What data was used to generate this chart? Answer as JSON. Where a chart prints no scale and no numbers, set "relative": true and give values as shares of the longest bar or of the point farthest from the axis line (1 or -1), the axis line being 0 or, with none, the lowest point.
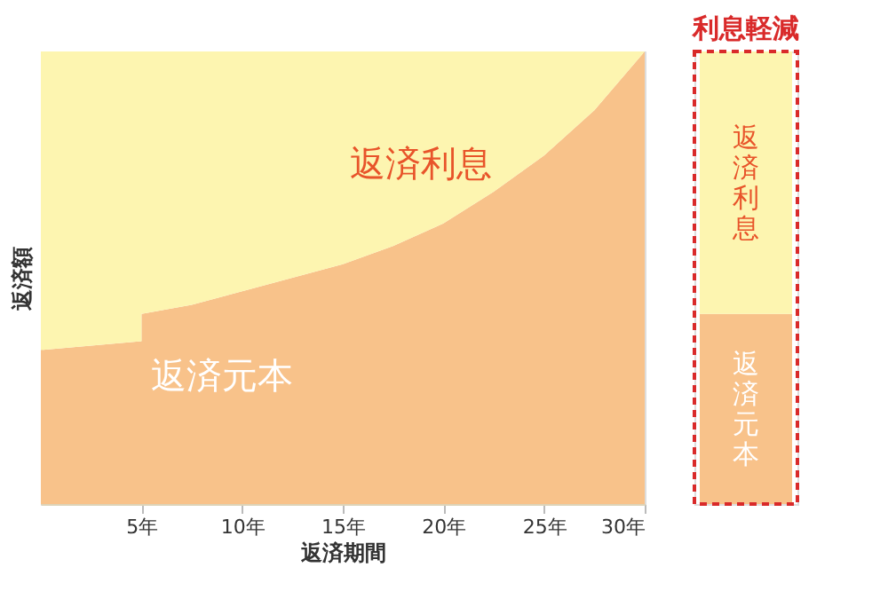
{
  "chart_data": [
    {
      "type": "area",
      "relative": true,
      "stacked": true,
      "xlabel": "返済期間",
      "ylabel": "返済額",
      "x": [
        0,
        5,
        5,
        7.5,
        10,
        12.5,
        15,
        17.5,
        20,
        22.5,
        25,
        27.5,
        30
      ],
      "xlim": [
        0,
        30
      ],
      "xticks": [
        {
          "value": 5,
          "label": "5年"
        },
        {
          "value": 10,
          "label": "10年"
        },
        {
          "value": 15,
          "label": "15年"
        },
        {
          "value": 20,
          "label": "20年"
        },
        {
          "value": 25,
          "label": "25年"
        },
        {
          "value": 30,
          "label": "30年"
        }
      ],
      "tick_labels": "x",
      "grid": false,
      "legend": false,
      "series": [
        {
          "name": "返済元本",
          "color": "#f8c28a",
          "values": [
            0.34,
            0.36,
            0.42,
            0.44,
            0.47,
            0.5,
            0.53,
            0.57,
            0.62,
            0.69,
            0.77,
            0.87,
            1.0
          ]
        },
        {
          "name": "返済利息",
          "color": "#fdf5b0",
          "values": [
            0.66,
            0.64,
            0.58,
            0.56,
            0.53,
            0.5,
            0.47,
            0.43,
            0.38,
            0.31,
            0.23,
            0.13,
            0.0
          ]
        }
      ]
    },
    {
      "type": "bar",
      "relative": true,
      "stacked": true,
      "categories": [
        null
      ],
      "tick_labels": false,
      "legend": false,
      "annotations": [
        "利息軽減"
      ],
      "series": [
        {
          "name": "返済元本",
          "color": "#f8c28a",
          "values": [
            0.42
          ]
        },
        {
          "name": "返済利息",
          "color": "#fdf5b0",
          "values": [
            0.58
          ]
        }
      ]
    }
  ]
}
